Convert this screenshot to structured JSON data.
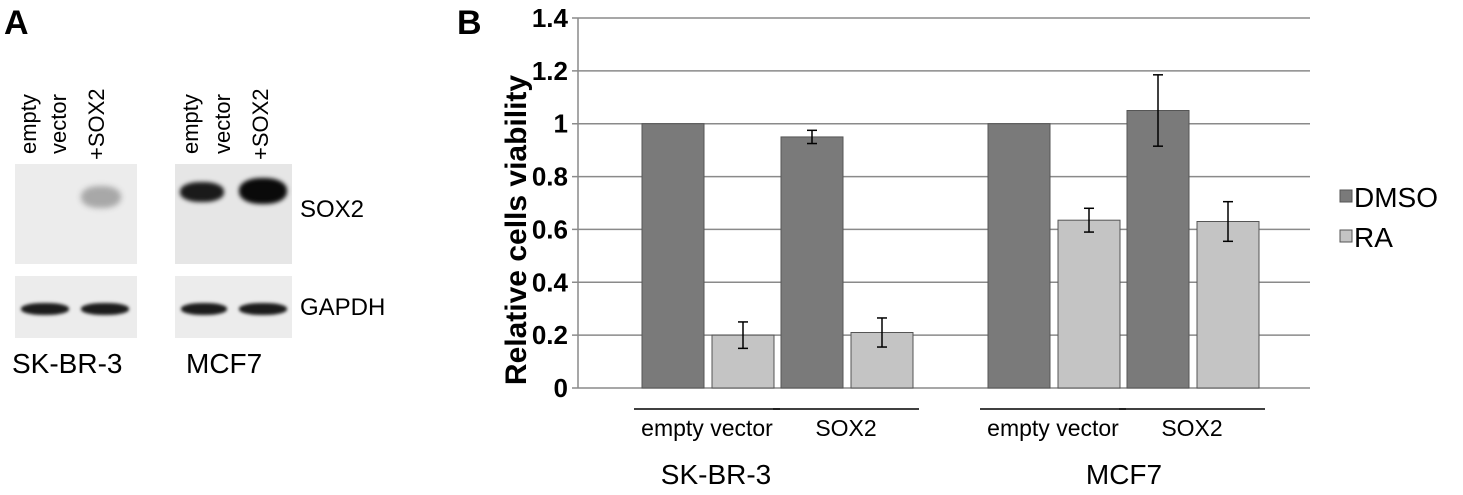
{
  "figure": {
    "panel_a_letter": "A",
    "panel_b_letter": "B"
  },
  "blot": {
    "lanes_sk": [
      "empty",
      "vector",
      "+SOX2"
    ],
    "lanes_mcf": [
      "empty",
      "vector",
      "+SOX2"
    ],
    "protein_labels": [
      "SOX2",
      "GAPDH"
    ],
    "cell_lines": [
      "SK-BR-3",
      "MCF7"
    ]
  },
  "chart_data": {
    "type": "bar",
    "title": "",
    "ylabel": "Relative cells viability",
    "xlabel": "",
    "ylim": [
      0,
      1.4
    ],
    "yticks": [
      "0",
      "0.2",
      "0.4",
      "0.6",
      "0.8",
      "1",
      "1.2",
      "1.4"
    ],
    "grid": true,
    "legend_position": "right",
    "cell_lines": [
      "SK-BR-3",
      "MCF7"
    ],
    "categories": [
      "empty vector",
      "SOX2",
      "empty vector",
      "SOX2"
    ],
    "series": [
      {
        "name": "DMSO",
        "color": "#7a7a7a",
        "values": [
          1.0,
          0.95,
          1.0,
          1.05
        ],
        "errors": [
          0,
          0.025,
          0,
          0.135
        ]
      },
      {
        "name": "RA",
        "color": "#c4c4c4",
        "values": [
          0.2,
          0.21,
          0.635,
          0.63
        ],
        "errors": [
          0.05,
          0.055,
          0.045,
          0.075
        ]
      }
    ]
  }
}
